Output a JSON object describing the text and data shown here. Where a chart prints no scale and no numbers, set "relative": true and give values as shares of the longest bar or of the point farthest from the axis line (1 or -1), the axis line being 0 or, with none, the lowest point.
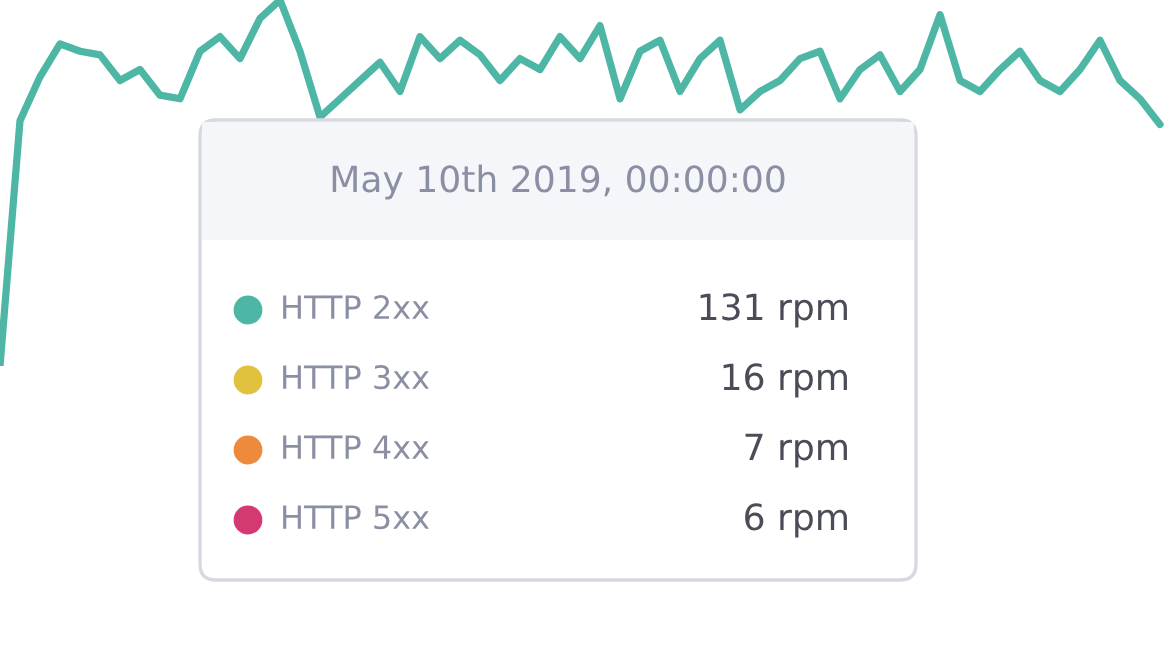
{
  "chart_data": {
    "type": "line",
    "relative": true,
    "categories": [
      null,
      null,
      null,
      null,
      null,
      null,
      null,
      null,
      null,
      null,
      null,
      null,
      null,
      null,
      null,
      null,
      null,
      null,
      null,
      null,
      null,
      null,
      null,
      null,
      null,
      null,
      null,
      null,
      null,
      null,
      null,
      null,
      null,
      null,
      null,
      null,
      null,
      null,
      null,
      null,
      null,
      null,
      null,
      null,
      null,
      null,
      null,
      null,
      null,
      null,
      null,
      null,
      null,
      null,
      null,
      null,
      null,
      null,
      null
    ],
    "series": [
      {
        "color": "#4db6a4",
        "values": [
          0,
          0.67,
          0.79,
          0.88,
          0.86,
          0.85,
          0.78,
          0.81,
          0.74,
          0.73,
          0.86,
          0.9,
          0.84,
          0.95,
          1,
          0.86,
          0.68,
          0.73,
          0.78,
          0.83,
          0.75,
          0.9,
          0.84,
          0.89,
          0.85,
          0.78,
          0.84,
          0.81,
          0.9,
          0.84,
          0.93,
          0.73,
          0.86,
          0.89,
          0.75,
          0.84,
          0.89,
          0.7,
          0.75,
          0.78,
          0.84,
          0.86,
          0.73,
          0.81,
          0.85,
          0.75,
          0.81,
          0.96,
          0.78,
          0.75,
          0.81,
          0.86,
          0.78,
          0.75,
          0.81,
          0.89,
          0.78,
          0.73,
          0.66
        ]
      }
    ],
    "annotations": [
      "May 10th 2019, 00:00:00",
      "HTTP 2xx",
      "131 rpm",
      "HTTP 3xx",
      "16 rpm",
      "HTTP 4xx",
      "7 rpm",
      "HTTP 5xx",
      "6 rpm"
    ],
    "marker": "none",
    "line_style": "solid",
    "legend": false
  }
}
